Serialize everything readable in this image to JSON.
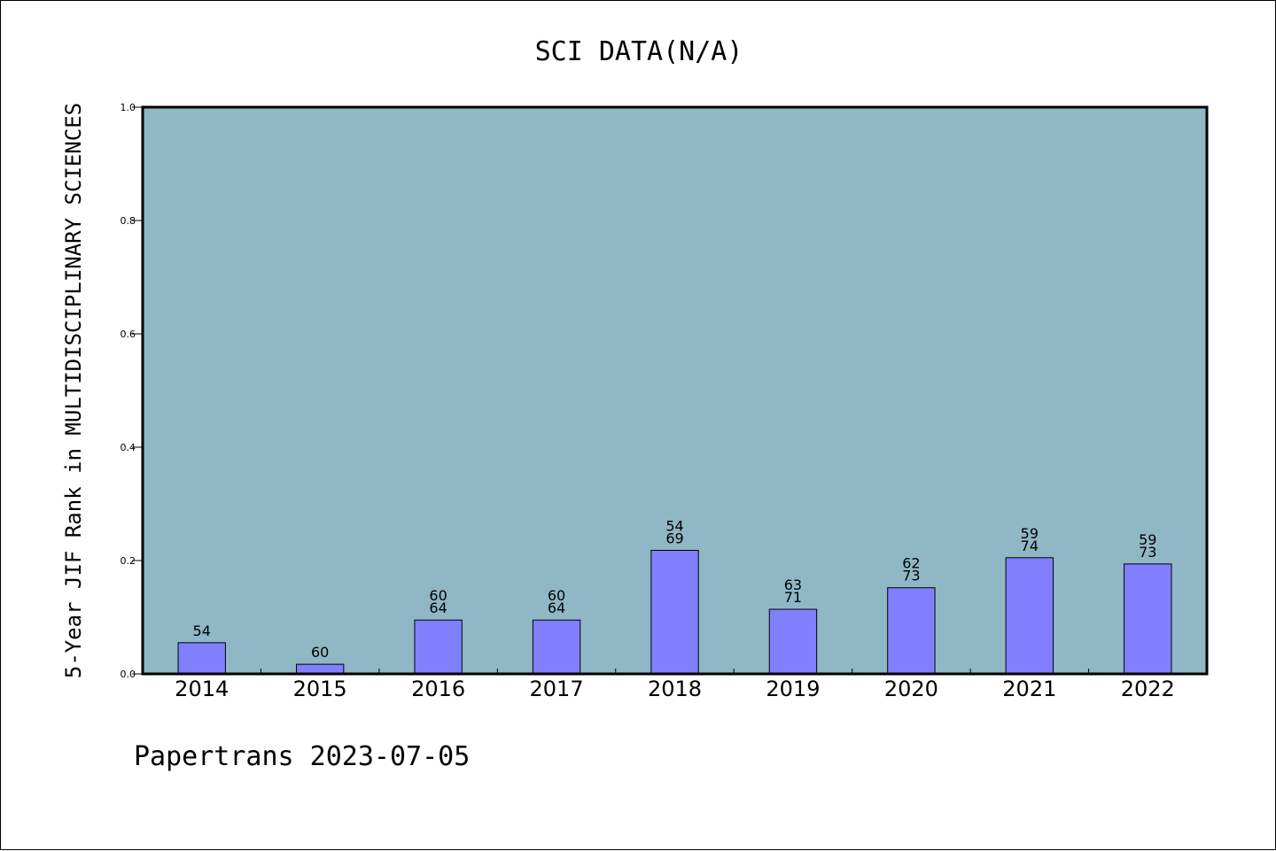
{
  "chart_data": {
    "type": "bar",
    "title": "SCI DATA(N/A)",
    "xlabel": "",
    "ylabel": "5-Year JIF Rank in MULTIDISCIPLINARY SCIENCES",
    "categories": [
      "2014",
      "2015",
      "2016",
      "2017",
      "2018",
      "2019",
      "2020",
      "2021",
      "2022"
    ],
    "values": [
      0.055,
      0.017,
      0.095,
      0.095,
      0.218,
      0.114,
      0.152,
      0.205,
      0.194
    ],
    "labels": [
      [
        "54"
      ],
      [
        "60"
      ],
      [
        "60",
        "64"
      ],
      [
        "60",
        "64"
      ],
      [
        "54",
        "69"
      ],
      [
        "63",
        "71"
      ],
      [
        "62",
        "73"
      ],
      [
        "59",
        "74"
      ],
      [
        "59",
        "73"
      ]
    ],
    "ylim": [
      0,
      1.0
    ],
    "yticks": [
      "0.0",
      "0.2",
      "0.4",
      "0.6",
      "0.8",
      "1.0"
    ],
    "grid": false,
    "legend": "none",
    "colors": {
      "plot_background": "#8fb7c6",
      "bar_fill": "#8080ff",
      "bar_stroke": "#000000",
      "axis": "#000000",
      "text": "#000000"
    }
  },
  "footer": {
    "text": "Papertrans 2023-07-05"
  }
}
